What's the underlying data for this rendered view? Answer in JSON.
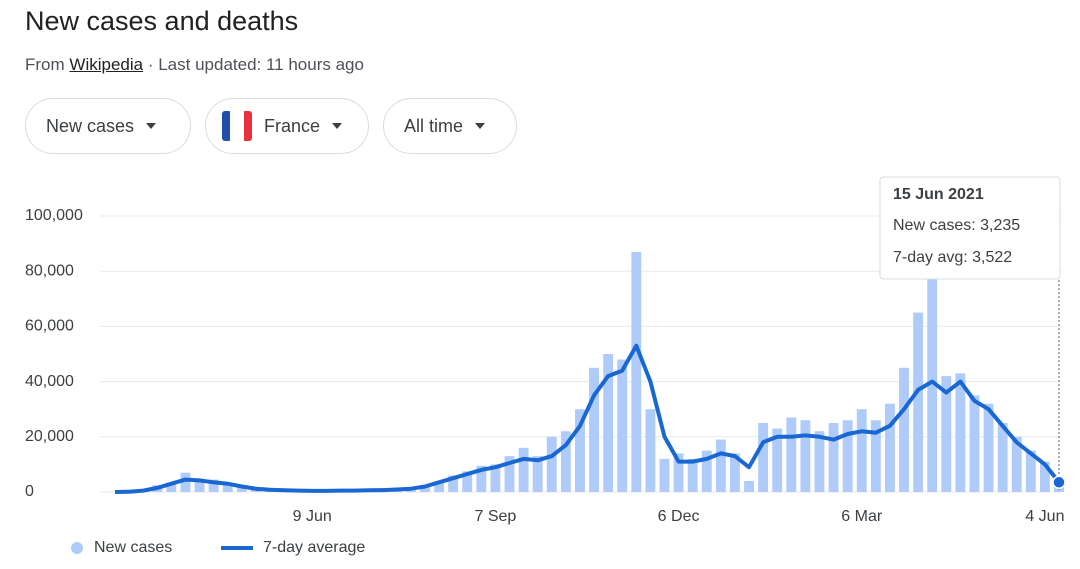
{
  "header": {
    "title": "New cases and deaths",
    "source_prefix": "From",
    "source_link": "Wikipedia",
    "updated": "· Last updated: 11 hours ago"
  },
  "filters": [
    "New cases",
    "France",
    "All time"
  ],
  "chart_data": {
    "type": "bar_line",
    "categories": [
      null,
      null,
      null,
      null,
      null,
      null,
      null,
      null,
      null,
      null,
      null,
      null,
      null,
      null,
      "9 Jun",
      null,
      null,
      null,
      null,
      null,
      null,
      null,
      null,
      null,
      null,
      null,
      null,
      "7 Sep",
      null,
      null,
      null,
      null,
      null,
      null,
      null,
      null,
      null,
      null,
      null,
      null,
      "6 Dec",
      null,
      null,
      null,
      null,
      null,
      null,
      null,
      null,
      null,
      null,
      null,
      null,
      "6 Mar",
      null,
      null,
      null,
      null,
      null,
      null,
      null,
      null,
      null,
      null,
      null,
      null,
      "4 Jun",
      null
    ],
    "series": [
      {
        "name": "New cases",
        "type": "bar",
        "color": "#aecbfa",
        "values": [
          0,
          200,
          800,
          2500,
          3500,
          7000,
          4500,
          4500,
          3000,
          2000,
          1500,
          900,
          700,
          600,
          500,
          400,
          600,
          500,
          700,
          900,
          1000,
          1500,
          2500,
          4000,
          6000,
          7500,
          9500,
          10000,
          13000,
          16000,
          13000,
          20000,
          22000,
          30000,
          45000,
          50000,
          48000,
          87000,
          30000,
          12000,
          14000,
          12000,
          15000,
          19000,
          14000,
          4000,
          25000,
          23000,
          27000,
          26000,
          22000,
          25000,
          26000,
          30000,
          26000,
          32000,
          45000,
          65000,
          78000,
          42000,
          43000,
          35000,
          32000,
          25000,
          20000,
          15000,
          11000,
          3235
        ]
      },
      {
        "name": "7-day average",
        "type": "line",
        "color": "#1967d2",
        "values": [
          0,
          100,
          500,
          1500,
          3000,
          4500,
          4200,
          3500,
          3000,
          2000,
          1200,
          800,
          600,
          500,
          400,
          400,
          500,
          500,
          600,
          700,
          900,
          1200,
          2000,
          3500,
          5000,
          6500,
          8000,
          9000,
          10500,
          12000,
          11500,
          13000,
          17000,
          24000,
          35000,
          42000,
          44000,
          53000,
          40000,
          20000,
          11000,
          11000,
          12000,
          14000,
          13000,
          9000,
          18000,
          20000,
          20000,
          20500,
          20000,
          19000,
          21000,
          22000,
          21500,
          24000,
          30000,
          37000,
          40000,
          36000,
          40000,
          33000,
          30000,
          24000,
          18000,
          14000,
          10000,
          3522
        ]
      }
    ],
    "ylim": [
      0,
      100000
    ],
    "yticks": [
      0,
      {
        "value": 20000,
        "label": "20,000"
      },
      {
        "value": 40000,
        "label": "40,000"
      },
      {
        "value": 60000,
        "label": "60,000"
      },
      {
        "value": 80000,
        "label": "80,000"
      },
      {
        "value": 100000,
        "label": "100,000"
      }
    ],
    "grid": true,
    "legend": "bottom-left",
    "tooltip": {
      "date": "15 Jun 2021",
      "lines": [
        "New cases: 3,235",
        "7-day avg: 3,522"
      ]
    }
  }
}
